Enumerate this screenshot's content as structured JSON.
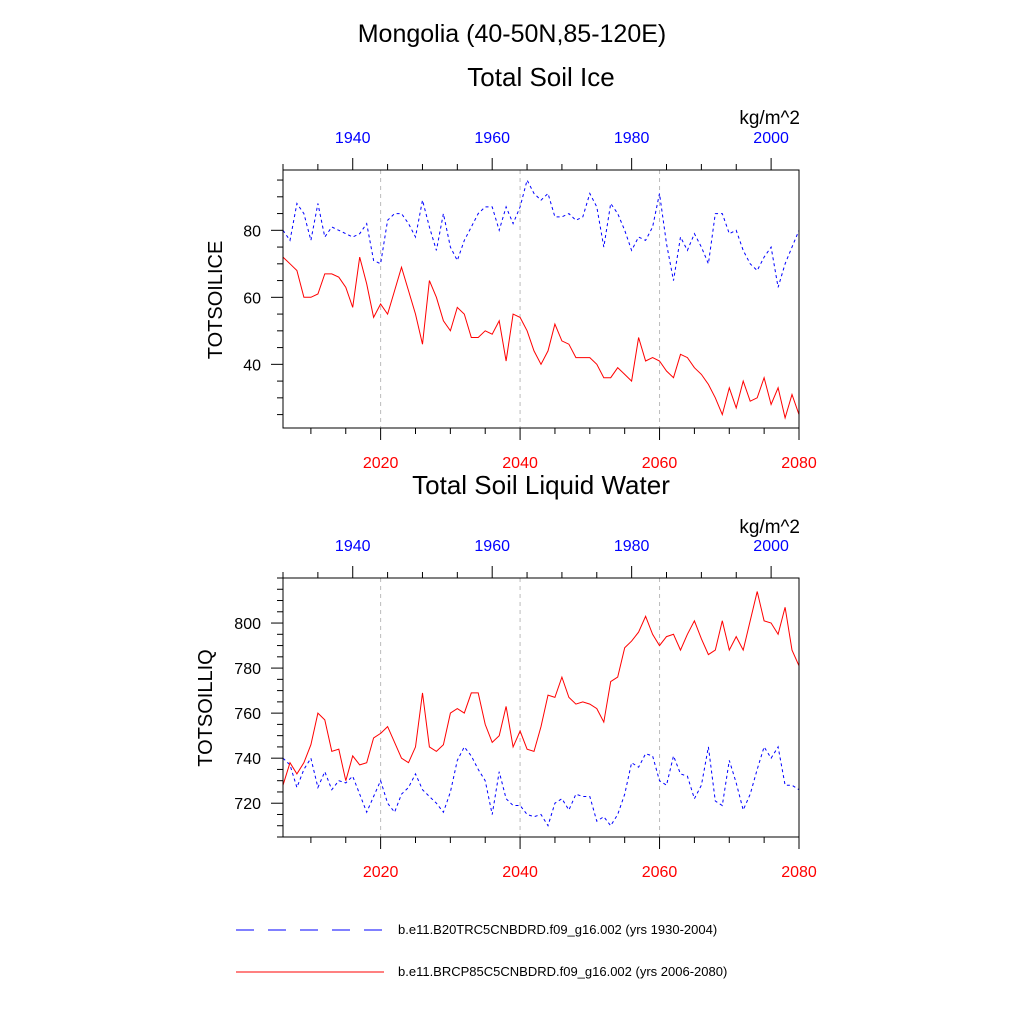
{
  "figure": {
    "title": "Mongolia (40-50N,85-120E)",
    "colors": {
      "historical": "#0000ff",
      "future": "#ff0000",
      "axis": "#000000",
      "grid": "#bbbbbb"
    }
  },
  "chart_data": [
    {
      "type": "line",
      "title": "Total Soil Ice",
      "ylabel": "TOTSOILICE",
      "units": "kg/m^2",
      "ylim": [
        21,
        98
      ],
      "yticks": [
        40,
        60,
        80
      ],
      "bottom_axis": {
        "range": [
          2006,
          2080
        ],
        "ticks": [
          2020,
          2040,
          2060,
          2080
        ],
        "color": "#ff0000"
      },
      "top_axis": {
        "range": [
          1930,
          2004
        ],
        "ticks": [
          1940,
          1960,
          1980,
          2000
        ],
        "color": "#0000ff"
      },
      "grid_x": [
        2020,
        2040,
        2060
      ],
      "series": [
        {
          "name": "b.e11.B20TRC5CNBDRD.f09_g16.002 (yrs 1930-2004)",
          "axis": "top",
          "style": "dashed",
          "color": "#0000ff",
          "x_start": 1930,
          "values": [
            80,
            77,
            88,
            85,
            77,
            88,
            78,
            81,
            80,
            79,
            78,
            79,
            82,
            71,
            70,
            83,
            85,
            85,
            82,
            78,
            89,
            81,
            74,
            85,
            75,
            71,
            77,
            81,
            85,
            87,
            87,
            80,
            87,
            82,
            87,
            95,
            91,
            89,
            91,
            84,
            84,
            85,
            83,
            84,
            91,
            87,
            75,
            88,
            85,
            80,
            74,
            78,
            77,
            81,
            91,
            76,
            65,
            78,
            74,
            79,
            75,
            70,
            85,
            85,
            79,
            80,
            74,
            70,
            68,
            72,
            75,
            63,
            70,
            75,
            80
          ]
        },
        {
          "name": "b.e11.BRCP85C5CNBDRD.f09_g16.002 (yrs 2006-2080)",
          "axis": "bottom",
          "style": "solid",
          "color": "#ff0000",
          "x_start": 2006,
          "values": [
            72,
            70,
            68,
            60,
            60,
            61,
            67,
            67,
            66,
            63,
            57,
            72,
            64,
            54,
            58,
            55,
            62,
            69,
            62,
            55,
            46,
            65,
            60,
            53,
            50,
            57,
            55,
            48,
            48,
            50,
            49,
            53,
            41,
            55,
            54,
            50,
            44,
            40,
            44,
            52,
            47,
            46,
            42,
            42,
            42,
            40,
            36,
            36,
            39,
            37,
            35,
            48,
            41,
            42,
            41,
            38,
            36,
            43,
            42,
            39,
            37,
            34,
            30,
            25,
            33,
            27,
            35,
            29,
            30,
            36,
            28,
            33,
            24,
            31,
            25
          ]
        }
      ]
    },
    {
      "type": "line",
      "title": "Total Soil Liquid Water",
      "ylabel": "TOTSOILLIQ",
      "units": "kg/m^2",
      "ylim": [
        705,
        820
      ],
      "yticks": [
        720,
        740,
        760,
        780,
        800
      ],
      "bottom_axis": {
        "range": [
          2006,
          2080
        ],
        "ticks": [
          2020,
          2040,
          2060,
          2080
        ],
        "color": "#ff0000"
      },
      "top_axis": {
        "range": [
          1930,
          2004
        ],
        "ticks": [
          1940,
          1960,
          1980,
          2000
        ],
        "color": "#0000ff"
      },
      "grid_x": [
        2020,
        2040,
        2060
      ],
      "series": [
        {
          "name": "b.e11.B20TRC5CNBDRD.f09_g16.002 (yrs 1930-2004)",
          "axis": "top",
          "style": "dashed",
          "color": "#0000ff",
          "x_start": 1930,
          "values": [
            740,
            737,
            727,
            735,
            740,
            727,
            734,
            726,
            730,
            729,
            732,
            724,
            716,
            723,
            730,
            720,
            716,
            724,
            727,
            733,
            726,
            723,
            720,
            716,
            725,
            739,
            745,
            741,
            735,
            730,
            715,
            734,
            722,
            719,
            719,
            715,
            714,
            715,
            710,
            720,
            722,
            717,
            724,
            723,
            723,
            712,
            714,
            710,
            715,
            724,
            738,
            736,
            742,
            741,
            730,
            728,
            741,
            733,
            732,
            722,
            728,
            745,
            721,
            719,
            739,
            729,
            717,
            724,
            735,
            745,
            740,
            745,
            728,
            728,
            726
          ]
        },
        {
          "name": "b.e11.BRCP85C5CNBDRD.f09_g16.002 (yrs 2006-2080)",
          "axis": "bottom",
          "style": "solid",
          "color": "#ff0000",
          "x_start": 2006,
          "values": [
            728,
            738,
            733,
            738,
            746,
            760,
            757,
            743,
            744,
            730,
            741,
            737,
            738,
            749,
            751,
            754,
            747,
            740,
            738,
            745,
            769,
            745,
            743,
            746,
            760,
            762,
            760,
            769,
            769,
            755,
            747,
            750,
            763,
            745,
            752,
            744,
            743,
            754,
            768,
            767,
            776,
            767,
            764,
            765,
            764,
            762,
            756,
            774,
            776,
            789,
            792,
            796,
            803,
            795,
            790,
            794,
            795,
            788,
            795,
            801,
            793,
            786,
            788,
            801,
            788,
            794,
            788,
            801,
            814,
            801,
            800,
            795,
            807,
            788,
            781
          ]
        }
      ]
    }
  ]
}
